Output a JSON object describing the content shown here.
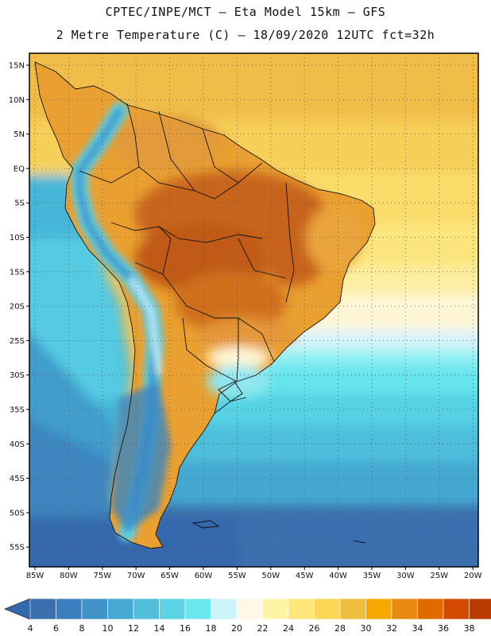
{
  "header": {
    "line1": "CPTEC/INPE/MCT –  Eta Model 15km – GFS",
    "line2": "2 Metre Temperature (C) – 18/09/2020 12UTC fct=32h"
  },
  "map": {
    "lat_labels": [
      "15N",
      "10N",
      "5N",
      "EQ",
      "5S",
      "10S",
      "15S",
      "20S",
      "25S",
      "30S",
      "35S",
      "40S",
      "45S",
      "50S",
      "55S"
    ],
    "lon_labels": [
      "85W",
      "80W",
      "75W",
      "70W",
      "65W",
      "60W",
      "55W",
      "50W",
      "45W",
      "40W",
      "35W",
      "30W",
      "25W",
      "20W"
    ]
  },
  "colorbar": {
    "labels": [
      "4",
      "6",
      "8",
      "10",
      "12",
      "14",
      "16",
      "18",
      "20",
      "22",
      "24",
      "26",
      "28",
      "30",
      "32",
      "34",
      "36",
      "38"
    ],
    "colors": [
      "#3a6fb0",
      "#3c7fbf",
      "#3f93c9",
      "#45a9d2",
      "#4fbfdc",
      "#5bd3e4",
      "#6be7ee",
      "#cdf3fb",
      "#fff8e6",
      "#fff3a6",
      "#ffe67a",
      "#fbd657",
      "#efbe3f",
      "#f5a800",
      "#e98a10",
      "#e06a00",
      "#d14a00",
      "#bb3b00"
    ],
    "low_color": "#3468ad",
    "high_color": "#b53a0a"
  }
}
